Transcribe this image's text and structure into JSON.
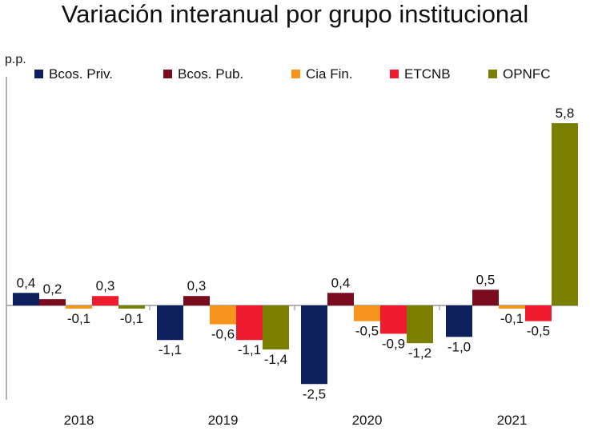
{
  "chart_data": {
    "type": "bar",
    "title": "Variación interanual por grupo institucional",
    "ylabel": "p.p.",
    "xlabel": "",
    "categories": [
      "2018",
      "2019",
      "2020",
      "2021"
    ],
    "ylim": [
      -2.8,
      6.4
    ],
    "grid": false,
    "legend_position": "top",
    "series": [
      {
        "name": "Bcos. Priv.",
        "color": "#0d1f5c",
        "values": [
          0.4,
          -1.1,
          -2.5,
          -1.0
        ],
        "labels": [
          "0,4",
          "-1,1",
          "-2,5",
          "-1,0"
        ]
      },
      {
        "name": "Bcos. Pub.",
        "color": "#7a0a1e",
        "values": [
          0.2,
          0.3,
          0.4,
          0.5
        ],
        "labels": [
          "0,2",
          "0,3",
          "0,4",
          "0,5"
        ]
      },
      {
        "name": "Cia Fin.",
        "color": "#f7941d",
        "values": [
          -0.1,
          -0.6,
          -0.5,
          -0.1
        ],
        "labels": [
          "-0,1",
          "-0,6",
          "-0,5",
          "-0,1"
        ]
      },
      {
        "name": "ETCNB",
        "color": "#ee1c2e",
        "values": [
          0.3,
          -1.1,
          -0.9,
          -0.5
        ],
        "labels": [
          "0,3",
          "-1,1",
          "-0,9",
          "-0,5"
        ]
      },
      {
        "name": "OPNFC",
        "color": "#7b7f00",
        "values": [
          -0.1,
          -1.4,
          -1.2,
          5.8
        ],
        "labels": [
          "-0,1",
          "-1,4",
          "-1,2",
          "5,8"
        ]
      }
    ]
  }
}
